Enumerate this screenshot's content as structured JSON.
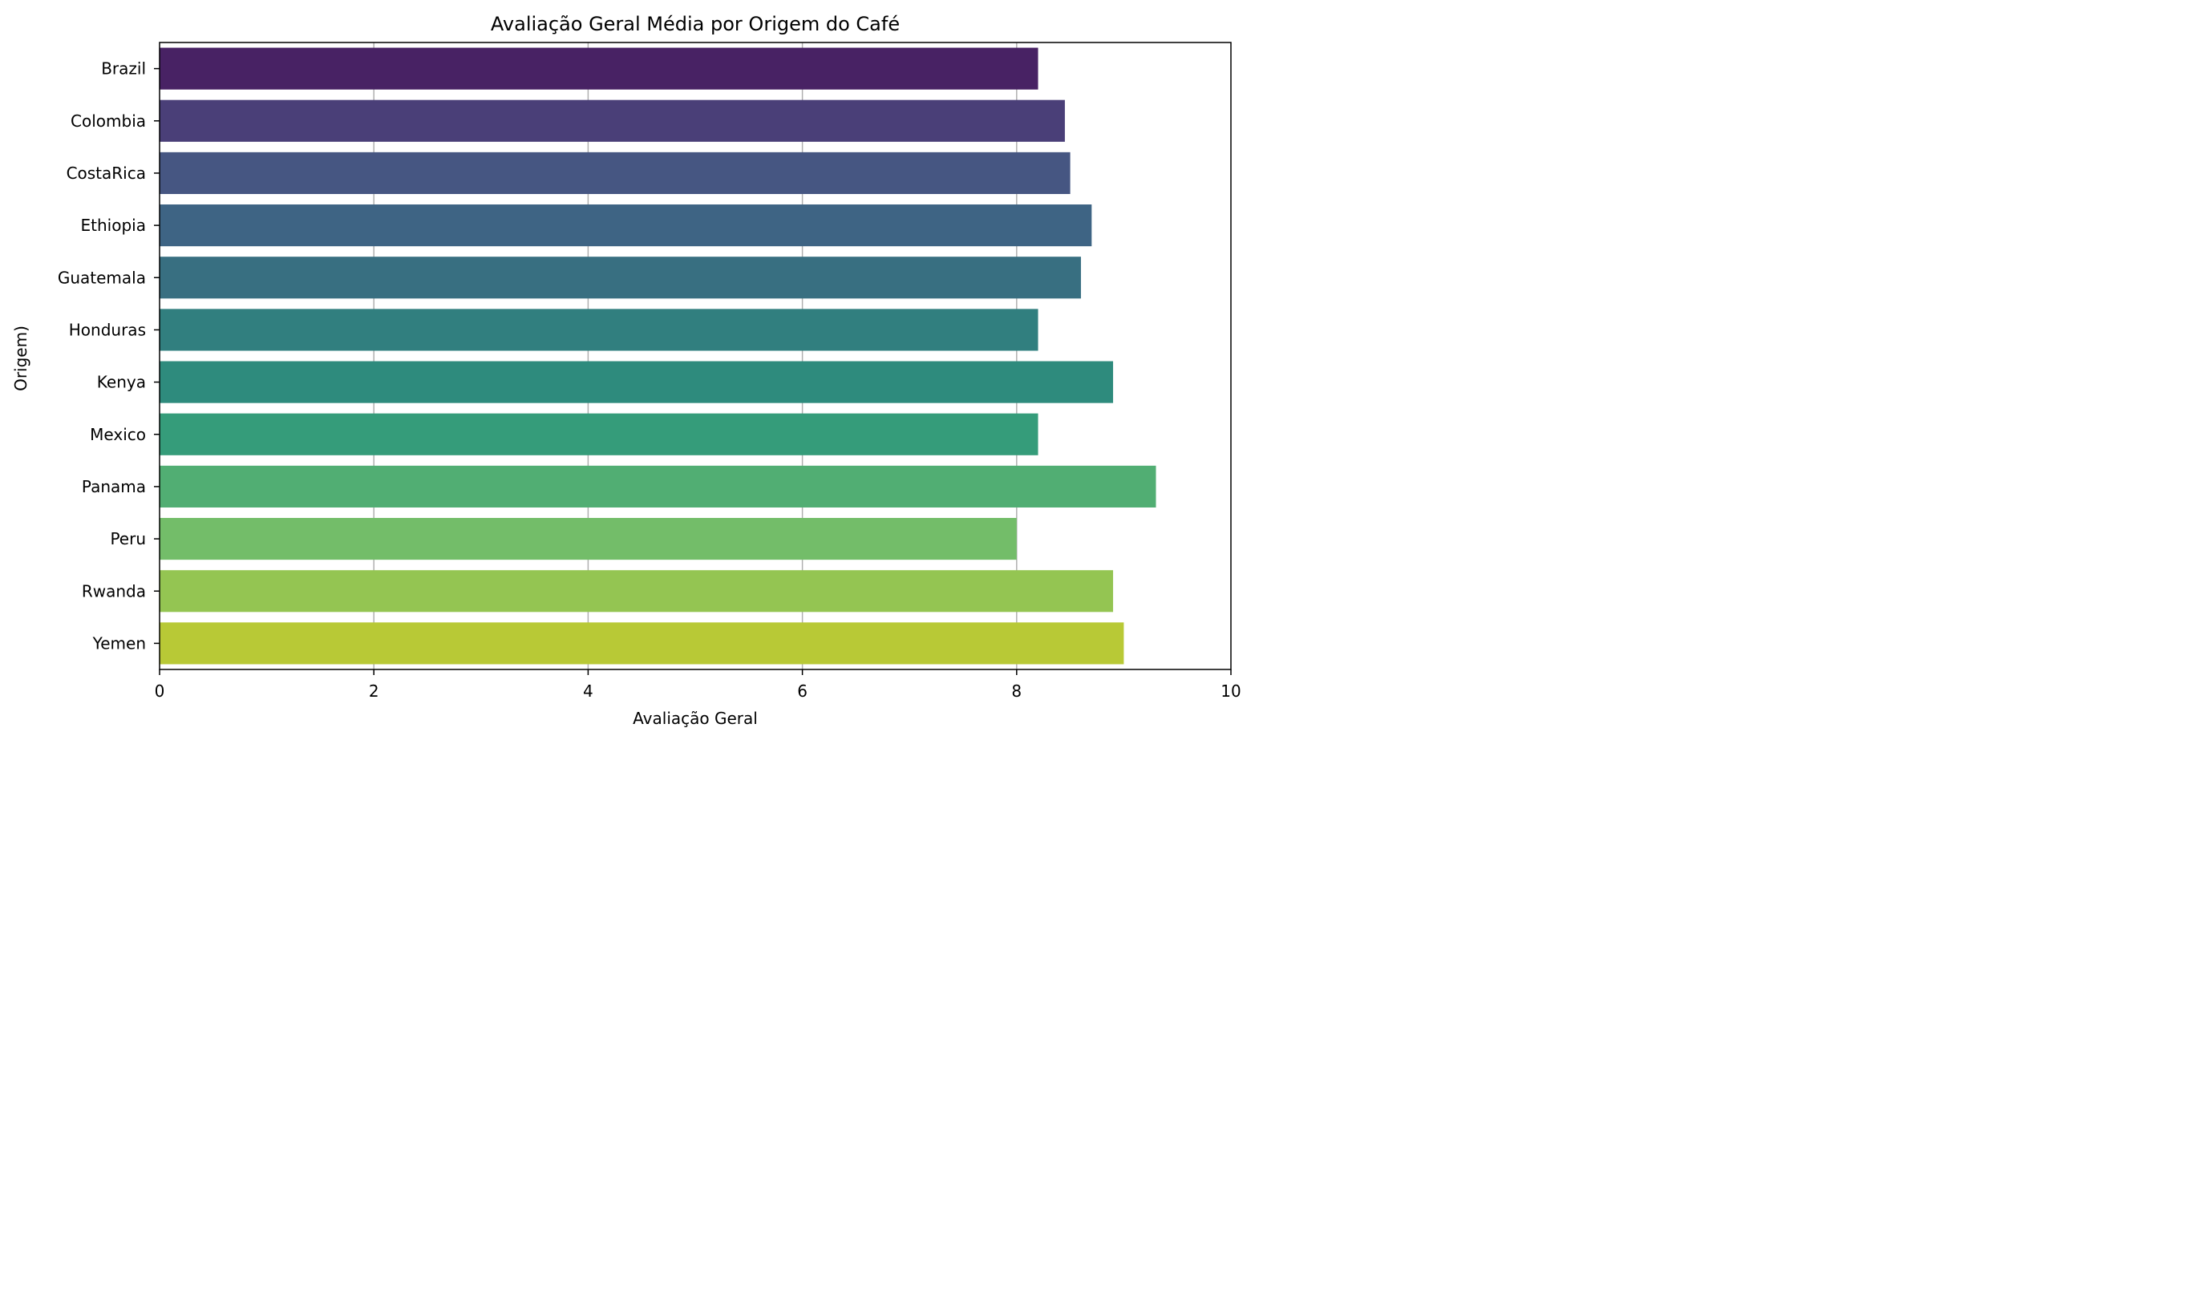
{
  "chart_data": {
    "type": "bar",
    "orientation": "horizontal",
    "title": "Avaliação Geral Média por Origem do Café",
    "xlabel": "Avaliação Geral",
    "ylabel": "Origem)",
    "xlim": [
      0,
      10
    ],
    "xticks": [
      "0",
      "2",
      "4",
      "6",
      "8",
      "10"
    ],
    "grid": "vertical",
    "legend": "none",
    "categories": [
      "Brazil",
      "Colombia",
      "CostaRica",
      "Ethiopia",
      "Guatemala",
      "Honduras",
      "Kenya",
      "Mexico",
      "Panama",
      "Peru",
      "Rwanda",
      "Yemen"
    ],
    "values": [
      8.2,
      8.45,
      8.5,
      8.7,
      8.6,
      8.2,
      8.9,
      8.2,
      9.3,
      8.0,
      8.9,
      9.0
    ],
    "colors": [
      "#482264",
      "#4a3f78",
      "#465682",
      "#3e6484",
      "#386f81",
      "#317f7f",
      "#2e8b7d",
      "#359c7a",
      "#51ae73",
      "#73bd69",
      "#94c552",
      "#b8c936"
    ],
    "grid_color": "#b0b0b0"
  }
}
